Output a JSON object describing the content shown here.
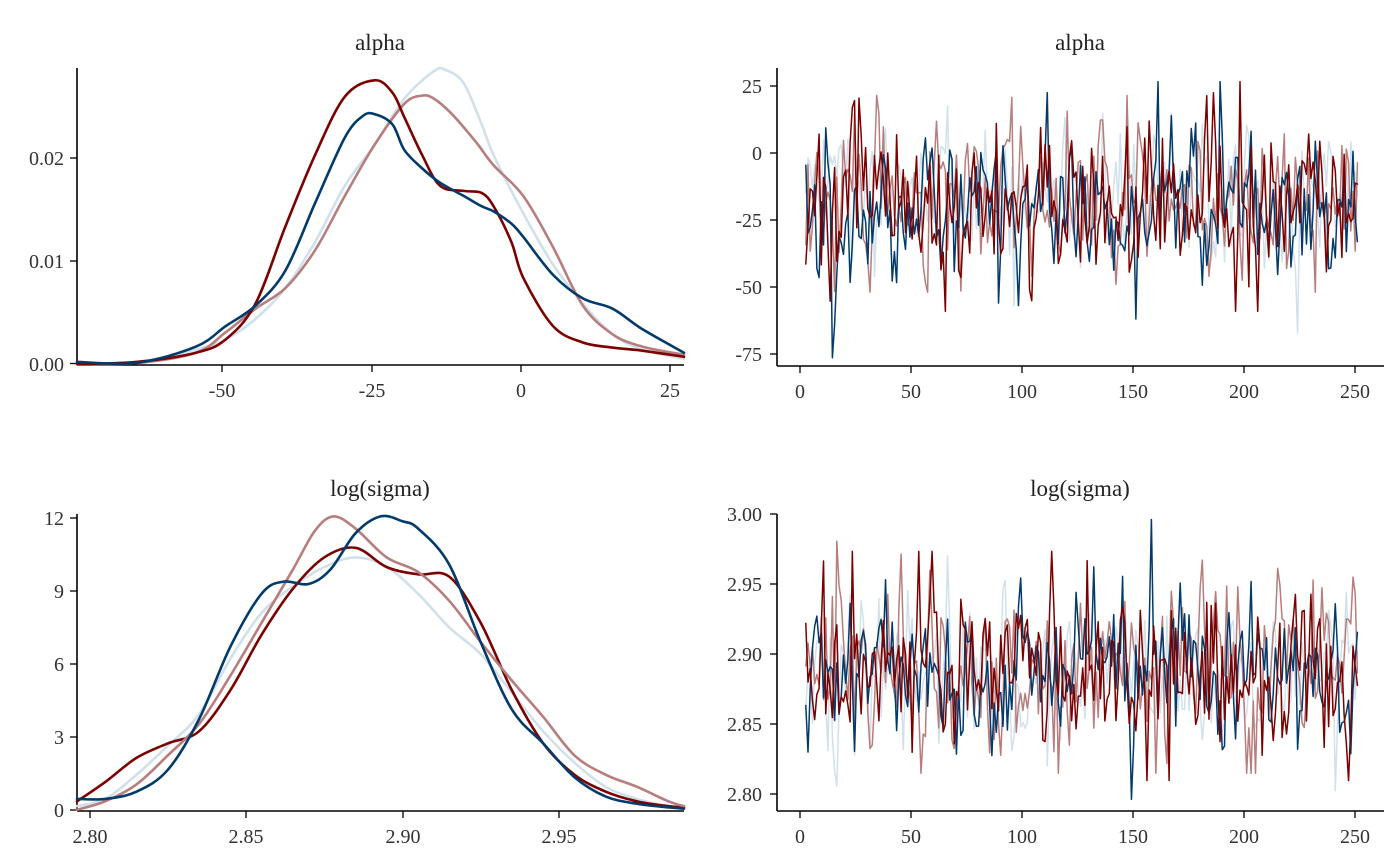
{
  "chain_colors": [
    "#7b0000",
    "#b87d7d",
    "#d1e1ec",
    "#023a6b"
  ],
  "chart_data": [
    {
      "type": "line",
      "subtype": "density",
      "title": "alpha",
      "xlim": [
        -75,
        27
      ],
      "ylim": [
        0,
        0.029
      ],
      "x_ticks": [
        -50,
        -25,
        0,
        25
      ],
      "x_tick_labels": [
        "-50",
        "-25",
        "0",
        "25"
      ],
      "y_ticks": [
        0,
        0.01,
        0.02
      ],
      "y_tick_labels": [
        "0.00",
        "0.01",
        "0.02"
      ],
      "draw_order": [
        2,
        1,
        0,
        3
      ],
      "series": [
        {
          "x": [
            -75,
            -65,
            -55,
            -50,
            -45,
            -40,
            -35,
            -30,
            -25,
            -22,
            -20,
            -17,
            -14,
            -10,
            -7,
            -5,
            -2,
            0,
            5,
            10,
            15,
            20,
            27
          ],
          "y": [
            0.0001,
            0.0003,
            0.0012,
            0.0025,
            0.006,
            0.0135,
            0.0205,
            0.0262,
            0.0278,
            0.0266,
            0.0242,
            0.0205,
            0.0175,
            0.017,
            0.0168,
            0.0155,
            0.012,
            0.0085,
            0.0038,
            0.0022,
            0.0017,
            0.0014,
            0.0008
          ]
        },
        {
          "x": [
            -75,
            -65,
            -55,
            -50,
            -45,
            -40,
            -35,
            -30,
            -25,
            -20,
            -17,
            -15,
            -12,
            -8,
            -5,
            0,
            5,
            10,
            15,
            20,
            27
          ],
          "y": [
            0.0001,
            0.0002,
            0.0012,
            0.0032,
            0.0055,
            0.0075,
            0.0112,
            0.0165,
            0.0215,
            0.0255,
            0.0263,
            0.026,
            0.0245,
            0.0218,
            0.0195,
            0.0165,
            0.0115,
            0.0058,
            0.003,
            0.0018,
            0.001
          ]
        },
        {
          "x": [
            -75,
            -65,
            -55,
            -50,
            -45,
            -40,
            -35,
            -30,
            -25,
            -20,
            -15,
            -13,
            -10,
            -7,
            -5,
            0,
            5,
            10,
            15,
            20,
            27
          ],
          "y": [
            0.0001,
            0.0003,
            0.0015,
            0.0025,
            0.0045,
            0.0075,
            0.012,
            0.0175,
            0.0215,
            0.026,
            0.0287,
            0.0288,
            0.0275,
            0.0235,
            0.0205,
            0.0148,
            0.0098,
            0.006,
            0.003,
            0.0015,
            0.0006
          ]
        },
        {
          "x": [
            -75,
            -65,
            -55,
            -50,
            -45,
            -40,
            -35,
            -30,
            -27,
            -25,
            -22,
            -20,
            -17,
            -14,
            -10,
            -7,
            -5,
            -2,
            0,
            5,
            10,
            15,
            20,
            27
          ],
          "y": [
            0.0003,
            0.0002,
            0.0018,
            0.0038,
            0.0058,
            0.0092,
            0.0158,
            0.0222,
            0.0243,
            0.0245,
            0.0235,
            0.021,
            0.0192,
            0.0178,
            0.0165,
            0.0155,
            0.015,
            0.0138,
            0.0125,
            0.0088,
            0.0065,
            0.0055,
            0.0035,
            0.0012
          ]
        }
      ]
    },
    {
      "type": "line",
      "subtype": "trace",
      "title": "alpha",
      "xlim": [
        -12,
        262
      ],
      "ylim": [
        -77,
        32
      ],
      "x_ticks": [
        0,
        50,
        100,
        150,
        200,
        250
      ],
      "x_tick_labels": [
        "0",
        "50",
        "100",
        "150",
        "200",
        "250"
      ],
      "y_ticks": [
        -75,
        -50,
        -25,
        0,
        25
      ],
      "y_tick_labels": [
        "-75",
        "-50",
        "-25",
        "0",
        "25"
      ],
      "draw_order": [
        2,
        1,
        3,
        0
      ],
      "trace_generated": true,
      "iterations": 250,
      "series": [
        {
          "mean": -18,
          "sd": 15,
          "seed": 101,
          "min": -57,
          "max": 27,
          "overrides": {
            "25": 21,
            "197": 27,
            "195": -57,
            "64": -57
          }
        },
        {
          "mean": -16,
          "sd": 14,
          "seed": 202,
          "min": -50,
          "max": 22,
          "overrides": {
            "33": 22,
            "30": -50,
            "134": 13
          }
        },
        {
          "mean": -15,
          "sd": 12,
          "seed": 303,
          "min": -65,
          "max": 21,
          "overrides": {
            "223": -65,
            "65": 18,
            "95": -55
          }
        },
        {
          "mean": -20,
          "sd": 14,
          "seed": 404,
          "min": -74,
          "max": 27,
          "overrides": {
            "13": -74,
            "188": 27,
            "110": 23
          }
        }
      ]
    },
    {
      "type": "line",
      "subtype": "density",
      "title": "log(sigma)",
      "xlim": [
        2.796,
        2.99
      ],
      "ylim": [
        0,
        12.3
      ],
      "x_ticks": [
        2.8,
        2.85,
        2.9,
        2.95
      ],
      "x_tick_labels": [
        "2.80",
        "2.85",
        "2.90",
        "2.95"
      ],
      "y_ticks": [
        0,
        3,
        6,
        9,
        12
      ],
      "y_tick_labels": [
        "0",
        "3",
        "6",
        "9",
        "12"
      ],
      "draw_order": [
        2,
        0,
        1,
        3
      ],
      "series": [
        {
          "x": [
            2.796,
            2.805,
            2.815,
            2.825,
            2.835,
            2.845,
            2.855,
            2.865,
            2.875,
            2.885,
            2.895,
            2.905,
            2.915,
            2.925,
            2.935,
            2.945,
            2.955,
            2.965,
            2.975,
            2.985,
            2.99
          ],
          "y": [
            0.4,
            1.2,
            2.2,
            2.8,
            3.3,
            5.0,
            7.3,
            9.2,
            10.5,
            10.9,
            10.1,
            9.8,
            9.7,
            7.8,
            5.0,
            2.8,
            1.5,
            0.8,
            0.4,
            0.2,
            0.15
          ]
        },
        {
          "x": [
            2.796,
            2.805,
            2.815,
            2.825,
            2.835,
            2.845,
            2.855,
            2.865,
            2.872,
            2.878,
            2.885,
            2.895,
            2.905,
            2.915,
            2.925,
            2.935,
            2.945,
            2.955,
            2.965,
            2.975,
            2.985,
            2.99
          ],
          "y": [
            0.05,
            0.4,
            1.1,
            2.3,
            3.6,
            5.6,
            7.8,
            10.0,
            11.6,
            12.2,
            11.7,
            10.5,
            9.9,
            8.7,
            7.0,
            5.4,
            3.9,
            2.3,
            1.5,
            1.0,
            0.4,
            0.2
          ]
        },
        {
          "x": [
            2.796,
            2.805,
            2.815,
            2.825,
            2.835,
            2.845,
            2.855,
            2.865,
            2.875,
            2.885,
            2.895,
            2.905,
            2.915,
            2.925,
            2.935,
            2.945,
            2.955,
            2.965,
            2.975,
            2.985,
            2.99
          ],
          "y": [
            0.2,
            0.5,
            1.5,
            2.7,
            4.0,
            6.3,
            8.2,
            9.3,
            10.1,
            10.5,
            10.1,
            9.0,
            7.6,
            6.5,
            4.9,
            3.3,
            2.0,
            1.0,
            0.5,
            0.2,
            0.1
          ]
        },
        {
          "x": [
            2.796,
            2.805,
            2.815,
            2.825,
            2.835,
            2.845,
            2.855,
            2.862,
            2.87,
            2.877,
            2.885,
            2.893,
            2.9,
            2.905,
            2.915,
            2.925,
            2.935,
            2.945,
            2.955,
            2.965,
            2.975,
            2.985,
            2.99
          ],
          "y": [
            0.5,
            0.5,
            0.8,
            1.7,
            3.8,
            6.8,
            9.0,
            9.5,
            9.4,
            10.0,
            11.5,
            12.2,
            12.0,
            11.7,
            10.2,
            7.0,
            4.2,
            2.8,
            1.4,
            0.6,
            0.3,
            0.15,
            0.1
          ]
        }
      ]
    },
    {
      "type": "line",
      "subtype": "trace",
      "title": "log(sigma)",
      "xlim": [
        -12,
        262
      ],
      "ylim": [
        2.789,
        3.0
      ],
      "x_ticks": [
        0,
        50,
        100,
        150,
        200,
        250
      ],
      "x_tick_labels": [
        "0",
        "50",
        "100",
        "150",
        "200",
        "250"
      ],
      "y_ticks": [
        2.8,
        2.85,
        2.9,
        2.95,
        3.0
      ],
      "y_tick_labels": [
        "2.80",
        "2.85",
        "2.90",
        "2.95",
        "3.00"
      ],
      "draw_order": [
        2,
        1,
        3,
        0
      ],
      "trace_generated": true,
      "iterations": 250,
      "series": [
        {
          "mean": 2.888,
          "sd": 0.028,
          "seed": 505,
          "min": 2.81,
          "max": 2.968,
          "overrides": {
            "112": 2.968,
            "22": 2.968,
            "165": 2.81
          }
        },
        {
          "mean": 2.888,
          "sd": 0.028,
          "seed": 606,
          "min": 2.815,
          "max": 2.975,
          "overrides": {
            "15": 2.975,
            "180": 2.962
          }
        },
        {
          "mean": 2.884,
          "sd": 0.025,
          "seed": 707,
          "min": 2.803,
          "max": 2.965,
          "overrides": {
            "14": 2.817,
            "240": 2.803,
            "65": 2.965
          }
        },
        {
          "mean": 2.886,
          "sd": 0.025,
          "seed": 808,
          "min": 2.797,
          "max": 2.99,
          "overrides": {
            "157": 2.99,
            "148": 2.797
          }
        }
      ]
    }
  ]
}
